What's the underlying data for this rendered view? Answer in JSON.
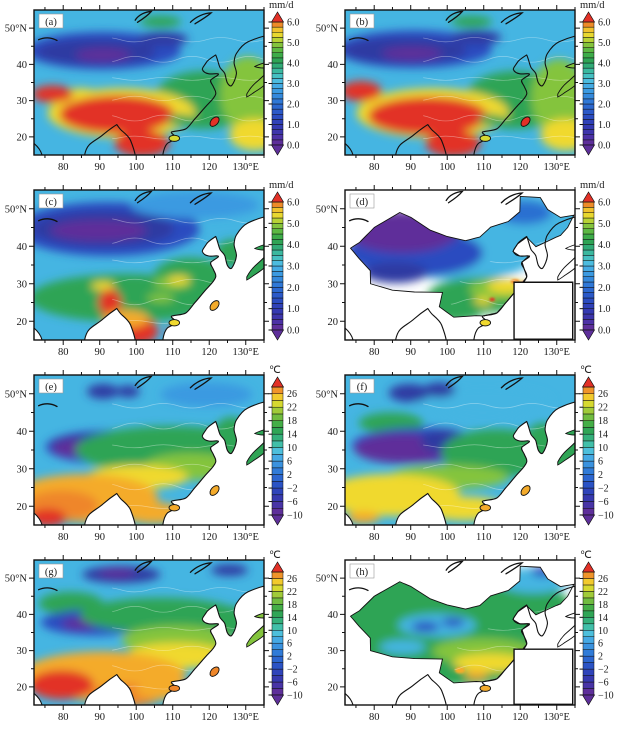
{
  "figure": {
    "type": "multi-panel filled-contour climate maps of China / East Asia",
    "rows": 4,
    "cols": 2
  },
  "axes": {
    "x_ticks": [
      {
        "lon": 80,
        "label": "80"
      },
      {
        "lon": 90,
        "label": "90"
      },
      {
        "lon": 100,
        "label": "100"
      },
      {
        "lon": 110,
        "label": "110"
      },
      {
        "lon": 120,
        "label": "120"
      },
      {
        "lon": 130,
        "label": "130°E"
      }
    ],
    "y_ticks": [
      {
        "lat": 50,
        "label": "50°N"
      },
      {
        "lat": 40,
        "label": "40"
      },
      {
        "lat": 30,
        "label": "30"
      },
      {
        "lat": 20,
        "label": "20"
      }
    ]
  },
  "colorbars": {
    "precip": {
      "unit": "mm/d",
      "colors": [
        "#5e2f9a",
        "#4c31a5",
        "#3d35ab",
        "#3439b1",
        "#2f41b8",
        "#2b4cc0",
        "#2b59c8",
        "#2c68d0",
        "#2f78d7",
        "#3489dc",
        "#3b9ae1",
        "#44abe4",
        "#4cbcdf",
        "#46c0c2",
        "#3bb89f",
        "#31ab76",
        "#2fa455",
        "#3dac49",
        "#5cb843",
        "#84c43d",
        "#b8d235",
        "#e8d830",
        "#f0c22d",
        "#ee8b28"
      ],
      "arrow_top": "#e23127",
      "arrow_bottom": "#5e2f9a",
      "labels": [
        {
          "at": 0,
          "text": "0.0"
        },
        {
          "at": 4,
          "text": "1.0"
        },
        {
          "at": 8,
          "text": "2.0"
        },
        {
          "at": 12,
          "text": "3.0"
        },
        {
          "at": 16,
          "text": "4.0"
        },
        {
          "at": 20,
          "text": "5.0"
        },
        {
          "at": 24,
          "text": "6.0"
        }
      ]
    },
    "temp": {
      "unit": "℃",
      "colors": [
        "#5e2f9a",
        "#4834a6",
        "#3739af",
        "#2f44ba",
        "#2b53c5",
        "#2c66d0",
        "#307bd8",
        "#3a92df",
        "#45a9e4",
        "#4dbfdc",
        "#41bfa9",
        "#34b07b",
        "#2fa556",
        "#44ae47",
        "#70bc40",
        "#a0cb39",
        "#d6d930",
        "#f2ca2d",
        "#f0942a"
      ],
      "arrow_top": "#e23127",
      "arrow_bottom": "#5e2f9a",
      "labels": [
        {
          "at": 0,
          "text": "−10"
        },
        {
          "at": 2,
          "text": "−6"
        },
        {
          "at": 4,
          "text": "−2"
        },
        {
          "at": 6,
          "text": "2"
        },
        {
          "at": 8,
          "text": "6"
        },
        {
          "at": 10,
          "text": "10"
        },
        {
          "at": 12,
          "text": "14"
        },
        {
          "at": 14,
          "text": "18"
        },
        {
          "at": 16,
          "text": "22"
        },
        {
          "at": 18,
          "text": "26"
        }
      ]
    }
  },
  "panels": [
    {
      "id": "a",
      "label": "(a)",
      "variable": "precipitation",
      "colorbar": "precip",
      "mode": "full",
      "inset": false,
      "base": "#45b5e2",
      "islands": {
        "taiwan": "#e23127",
        "hainan": "#d6d931",
        "japan": "#84c43d"
      },
      "blobs": [
        [
          30,
          28,
          34,
          13,
          "#2b4cc0"
        ],
        [
          27,
          29,
          26,
          9,
          "#2e3ba2"
        ],
        [
          30,
          31,
          12,
          4.5,
          "#5e2f9a"
        ],
        [
          56,
          20,
          11,
          5,
          "#2e3ba2"
        ],
        [
          55,
          8,
          9,
          4,
          "#2fa455"
        ],
        [
          74,
          62,
          22,
          20,
          "#2fa455"
        ],
        [
          93,
          58,
          12,
          26,
          "#84c43d"
        ],
        [
          96,
          86,
          11,
          11,
          "#f0d92f"
        ],
        [
          38,
          71,
          32,
          17,
          "#f0d92f"
        ],
        [
          20,
          60,
          10,
          6,
          "#f0d92f"
        ],
        [
          36,
          72,
          25,
          13,
          "#e23127"
        ],
        [
          8,
          58,
          9,
          6,
          "#e23127"
        ],
        [
          47,
          92,
          12,
          9,
          "#e23127"
        ],
        [
          64,
          76,
          6,
          4,
          "#2fa455"
        ]
      ]
    },
    {
      "id": "b",
      "label": "(b)",
      "variable": "precipitation",
      "colorbar": "precip",
      "mode": "full",
      "inset": false,
      "base": "#45b5e2",
      "islands": {
        "taiwan": "#e23127",
        "hainan": "#d6d931",
        "japan": "#84c43d"
      },
      "blobs": [
        [
          30,
          27,
          34,
          13,
          "#2b4cc0"
        ],
        [
          26,
          28,
          27,
          9,
          "#2e3ba2"
        ],
        [
          29,
          30,
          13,
          4.5,
          "#5e2f9a"
        ],
        [
          57,
          19,
          11,
          5,
          "#2e3ba2"
        ],
        [
          55,
          8,
          9,
          4,
          "#2fa455"
        ],
        [
          74,
          62,
          22,
          20,
          "#2fa455"
        ],
        [
          93,
          60,
          12,
          26,
          "#84c43d"
        ],
        [
          96,
          86,
          11,
          11,
          "#f0d92f"
        ],
        [
          38,
          71,
          33,
          17,
          "#f0d92f"
        ],
        [
          36,
          73,
          26,
          13,
          "#e23127"
        ],
        [
          7,
          56,
          9,
          7,
          "#e23127"
        ],
        [
          47,
          92,
          12,
          9,
          "#e23127"
        ],
        [
          64,
          76,
          6,
          4,
          "#2fa455"
        ]
      ]
    },
    {
      "id": "c",
      "label": "(c)",
      "variable": "precipitation",
      "colorbar": "precip",
      "mode": "land",
      "inset": false,
      "base": "#45b5e2",
      "islands": {
        "taiwan": "#f4ab2b",
        "hainan": "#f0d92f",
        "japan": "#2fa455"
      },
      "blobs": [
        [
          32,
          26,
          40,
          18,
          "#2b4cc0"
        ],
        [
          30,
          26,
          31,
          12,
          "#2e3ba2"
        ],
        [
          28,
          27,
          21,
          7,
          "#5e2f9a"
        ],
        [
          70,
          10,
          28,
          9,
          "#3b9ae1"
        ],
        [
          40,
          72,
          42,
          16,
          "#2fa455"
        ],
        [
          68,
          58,
          16,
          13,
          "#2fa455"
        ],
        [
          86,
          42,
          7,
          9,
          "#2fa455"
        ],
        [
          60,
          62,
          8,
          4,
          "#84c43d"
        ],
        [
          63,
          60,
          5,
          3,
          "#f0d92f"
        ],
        [
          30,
          64,
          5,
          3,
          "#f0d92f"
        ],
        [
          55,
          72,
          6,
          3,
          "#84c43d"
        ],
        [
          33,
          75,
          5,
          9,
          "#e23127"
        ],
        [
          45,
          94,
          9,
          9,
          "#e23127"
        ],
        [
          40,
          86,
          10,
          6,
          "#f4ab2b"
        ],
        [
          62,
          95,
          4,
          4,
          "#e23127"
        ]
      ]
    },
    {
      "id": "d",
      "label": "(d)",
      "variable": "precipitation",
      "colorbar": "precip",
      "mode": "china",
      "inset": true,
      "base": null,
      "islands": {
        "taiwan": "#84c43d",
        "hainan": "#f0d92f",
        "japan": "#ffffff"
      },
      "blobs": [
        [
          70,
          25,
          35,
          25,
          "#45b5e2"
        ],
        [
          50,
          48,
          30,
          12,
          "#45b5e2"
        ],
        [
          30,
          42,
          30,
          16,
          "#2b4cc0"
        ],
        [
          26,
          28,
          25,
          11,
          "#2e3ba2"
        ],
        [
          25,
          28,
          24,
          14,
          "#5e2f9a"
        ],
        [
          22,
          55,
          14,
          7,
          "#2e3ba2"
        ],
        [
          78,
          15,
          12,
          8,
          "#2b6fd1"
        ],
        [
          60,
          70,
          24,
          12,
          "#2fa455"
        ],
        [
          48,
          80,
          12,
          8,
          "#2fa455"
        ],
        [
          67,
          66,
          13,
          7,
          "#84c43d"
        ],
        [
          70,
          64,
          8,
          5,
          "#f0d92f"
        ],
        [
          60,
          74,
          4,
          2.5,
          "#f0d92f"
        ],
        [
          74,
          61,
          2,
          1.5,
          "#ef8629"
        ],
        [
          78,
          62,
          1.3,
          1.3,
          "#e23127"
        ],
        [
          64,
          73,
          1.2,
          1.2,
          "#e23127"
        ]
      ]
    },
    {
      "id": "e",
      "label": "(e)",
      "variable": "temperature",
      "colorbar": "temp",
      "mode": "land",
      "inset": false,
      "base": "#45b5e2",
      "islands": {
        "taiwan": "#f4ab2b",
        "hainan": "#f4ab2b",
        "japan": "#2fa455"
      },
      "blobs": [
        [
          75,
          13,
          20,
          8,
          "#3b9ae1"
        ],
        [
          30,
          11,
          7,
          5,
          "#2e3ba2"
        ],
        [
          41,
          11,
          5,
          4,
          "#2e3ba2"
        ],
        [
          32,
          48,
          27,
          11,
          "#2b4cc0"
        ],
        [
          26,
          47,
          19,
          8,
          "#2e3ba2"
        ],
        [
          18,
          49,
          10,
          6,
          "#5e2f9a"
        ],
        [
          60,
          50,
          42,
          16,
          "#2fa455"
        ],
        [
          86,
          40,
          8,
          12,
          "#2fa455"
        ],
        [
          68,
          61,
          20,
          9,
          "#84c43d"
        ],
        [
          45,
          68,
          22,
          8,
          "#f0d92f"
        ],
        [
          22,
          82,
          32,
          16,
          "#f4ab2b"
        ],
        [
          12,
          87,
          16,
          10,
          "#ef8629"
        ],
        [
          6,
          95,
          8,
          6,
          "#e23127"
        ],
        [
          52,
          92,
          14,
          7,
          "#f4ab2b"
        ]
      ]
    },
    {
      "id": "f",
      "label": "(f)",
      "variable": "temperature",
      "colorbar": "temp",
      "mode": "land",
      "inset": false,
      "base": "#45b5e2",
      "islands": {
        "taiwan": "#f4ab2b",
        "hainan": "#f4ab2b",
        "japan": "#2fa455"
      },
      "blobs": [
        [
          60,
          18,
          30,
          10,
          "#45b5e2"
        ],
        [
          28,
          12,
          9,
          6,
          "#2e3ba2"
        ],
        [
          41,
          10,
          7,
          5,
          "#2e3ba2"
        ],
        [
          20,
          32,
          14,
          7,
          "#2fa455"
        ],
        [
          32,
          47,
          29,
          12,
          "#2b4cc0"
        ],
        [
          25,
          49,
          21,
          10,
          "#5e2f9a"
        ],
        [
          43,
          44,
          10,
          8,
          "#2e3ba2"
        ],
        [
          66,
          52,
          24,
          16,
          "#2fa455"
        ],
        [
          86,
          42,
          7,
          10,
          "#2fa455"
        ],
        [
          45,
          68,
          26,
          8,
          "#84c43d"
        ],
        [
          20,
          80,
          30,
          14,
          "#f0d92f"
        ],
        [
          52,
          89,
          18,
          8,
          "#f0d92f"
        ],
        [
          8,
          95,
          7,
          4,
          "#f4ab2b"
        ]
      ]
    },
    {
      "id": "g",
      "label": "(g)",
      "variable": "temperature",
      "colorbar": "temp",
      "mode": "land",
      "inset": false,
      "base": "#45b5e2",
      "islands": {
        "taiwan": "#ef8629",
        "hainan": "#ef8629",
        "japan": "#84c43d"
      },
      "blobs": [
        [
          38,
          10,
          17,
          6,
          "#2e3ba2"
        ],
        [
          36,
          9,
          8,
          3,
          "#5e2f9a"
        ],
        [
          85,
          7,
          8,
          4,
          "#2e3ba2"
        ],
        [
          16,
          30,
          14,
          8,
          "#2fa455"
        ],
        [
          27,
          43,
          24,
          9,
          "#2b4cc0"
        ],
        [
          20,
          44,
          8,
          4,
          "#5e2f9a"
        ],
        [
          55,
          38,
          35,
          12,
          "#2fa455"
        ],
        [
          86,
          42,
          7,
          10,
          "#2fa455"
        ],
        [
          62,
          55,
          24,
          10,
          "#84c43d"
        ],
        [
          62,
          66,
          22,
          9,
          "#f0d92f"
        ],
        [
          30,
          80,
          36,
          17,
          "#f4ab2b"
        ],
        [
          12,
          86,
          14,
          10,
          "#e23127"
        ],
        [
          40,
          93,
          16,
          8,
          "#ef8629"
        ],
        [
          56,
          90,
          12,
          6,
          "#f4ab2b"
        ]
      ]
    },
    {
      "id": "h",
      "label": "(h)",
      "variable": "temperature",
      "colorbar": "temp",
      "mode": "china",
      "inset": true,
      "base": null,
      "islands": {
        "taiwan": "#f0d92f",
        "hainan": "#f4ab2b",
        "japan": "#ffffff"
      },
      "blobs": [
        [
          50,
          45,
          52,
          42,
          "#2fa455"
        ],
        [
          82,
          14,
          16,
          9,
          "#45b5e2"
        ],
        [
          86,
          8,
          5,
          3.5,
          "#2b4cc0"
        ],
        [
          40,
          45,
          17,
          8,
          "#45b5e2"
        ],
        [
          35,
          46,
          6,
          3.5,
          "#2b4cc0"
        ],
        [
          47,
          43,
          5,
          3,
          "#2b4cc0"
        ],
        [
          25,
          60,
          10,
          5,
          "#45b5e2"
        ],
        [
          70,
          35,
          18,
          8,
          "#2fa455"
        ],
        [
          60,
          63,
          22,
          9,
          "#84c43d"
        ],
        [
          63,
          71,
          16,
          6.5,
          "#f0d92f"
        ],
        [
          57,
          79,
          5,
          3,
          "#f4ab2b"
        ],
        [
          50,
          76,
          2.2,
          2.2,
          "#f4ab2b"
        ]
      ]
    }
  ]
}
